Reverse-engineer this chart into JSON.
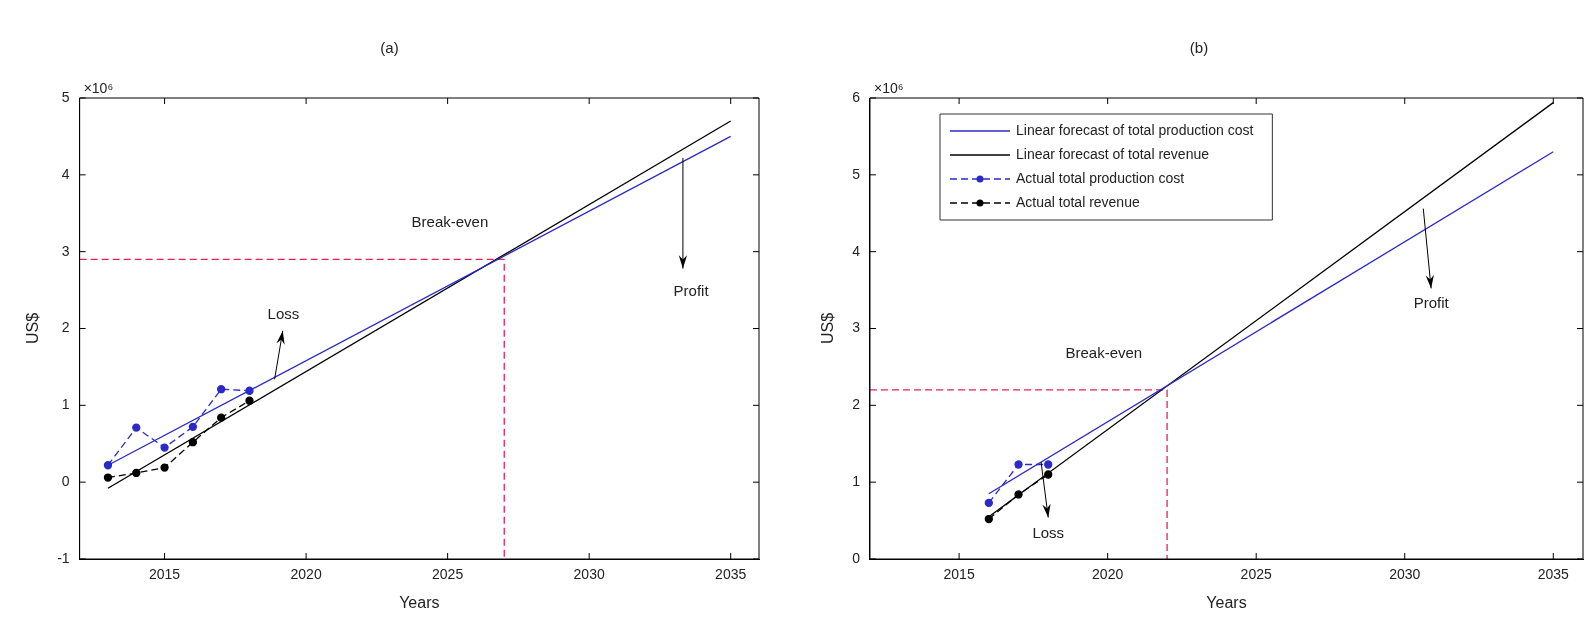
{
  "chart_data": [
    {
      "type": "line",
      "title": "(a)",
      "xlabel": "Years",
      "ylabel": "US$",
      "xlim": [
        2012,
        2036
      ],
      "xticks": [
        2015,
        2020,
        2025,
        2030,
        2035
      ],
      "ylim": [
        -1,
        5
      ],
      "yticks": [
        -1,
        0,
        1,
        2,
        3,
        4,
        5
      ],
      "grid": false,
      "legend": false,
      "series": [
        {
          "color": "#2a2ac8",
          "x": [
            2013,
            2035
          ],
          "values": [
            0.22,
            4.5
          ],
          "line_style": "solid"
        },
        {
          "color": "#000000",
          "x": [
            2013,
            2035
          ],
          "values": [
            -0.08,
            4.7
          ],
          "line_style": "solid"
        },
        {
          "color": "#2a2ac8",
          "x": [
            2013,
            2014,
            2015,
            2016,
            2017,
            2018
          ],
          "values": [
            0.22,
            0.71,
            0.45,
            0.72,
            1.21,
            1.19
          ],
          "marker": "circle",
          "line_style": "dashed"
        },
        {
          "color": "#000000",
          "x": [
            2013,
            2014,
            2015,
            2016,
            2017,
            2018
          ],
          "values": [
            0.06,
            0.12,
            0.19,
            0.52,
            0.84,
            1.06
          ],
          "marker": "circle",
          "line_style": "dashed"
        },
        {
          "color": "#e8205a",
          "x": [
            2012,
            2027,
            2027
          ],
          "values": [
            2.9,
            2.9,
            -1
          ],
          "line_style": "dashed"
        }
      ],
      "annotations": [
        "×10⁶",
        "Break-even",
        "Loss",
        "Profit"
      ]
    },
    {
      "type": "line",
      "title": "(b)",
      "xlabel": "Years",
      "ylabel": "US$",
      "xlim": [
        2012,
        2036
      ],
      "xticks": [
        2015,
        2020,
        2025,
        2030,
        2035
      ],
      "ylim": [
        0,
        6
      ],
      "yticks": [
        0,
        1,
        2,
        3,
        4,
        5,
        6
      ],
      "grid": false,
      "legend": "top left",
      "series": [
        {
          "name": "Linear forecast of total production cost",
          "color": "#2a2ac8",
          "x": [
            2016,
            2035
          ],
          "values": [
            0.85,
            5.3
          ],
          "line_style": "solid"
        },
        {
          "name": "Linear forecast of total revenue",
          "color": "#000000",
          "x": [
            2016,
            2035
          ],
          "values": [
            0.55,
            5.94
          ],
          "line_style": "solid"
        },
        {
          "name": "Actual total production cost",
          "color": "#2a2ac8",
          "x": [
            2016,
            2017,
            2018
          ],
          "values": [
            0.73,
            1.23,
            1.23
          ],
          "marker": "circle",
          "line_style": "dashed"
        },
        {
          "name": "Actual total revenue",
          "color": "#000000",
          "x": [
            2016,
            2017,
            2018
          ],
          "values": [
            0.52,
            0.84,
            1.1
          ],
          "marker": "circle",
          "line_style": "dashed"
        },
        {
          "color": "#e8205a",
          "x": [
            2012,
            2022,
            2022
          ],
          "values": [
            2.2,
            2.2,
            0
          ],
          "line_style": "dashed"
        }
      ],
      "annotations": [
        "×10⁶",
        "Break-even",
        "Loss",
        "Profit"
      ]
    }
  ]
}
